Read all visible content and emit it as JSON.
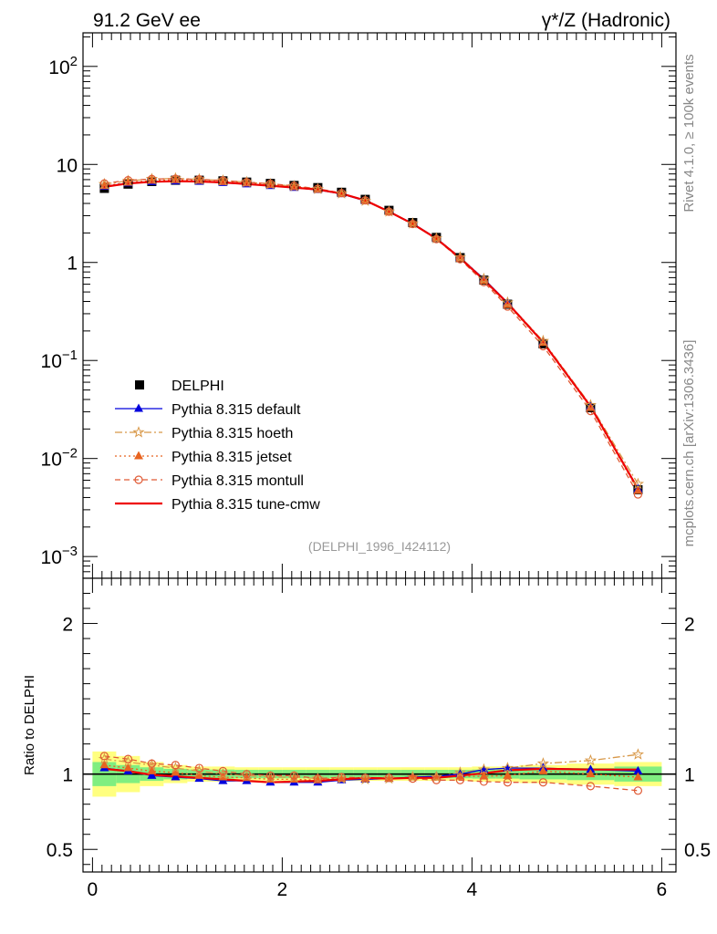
{
  "header": {
    "title_left": "91.2 GeV ee",
    "title_right": "γ*/Z (Hadronic)"
  },
  "side_labels": {
    "rivet": "Rivet 4.1.0, ≥ 100k events",
    "mcplots": "mcplots.cern.ch [arXiv:1306.3436]"
  },
  "watermark": "(DELPHI_1996_I424112)",
  "chart_data": [
    {
      "panel": "main",
      "type": "scatter",
      "yscale": "log",
      "xlim": [
        -0.1,
        6.15
      ],
      "ylim": [
        0.0006,
        220
      ],
      "ytick_labels": [
        {
          "value": 0.001,
          "base": "10",
          "exp": "−3"
        },
        {
          "value": 0.01,
          "base": "10",
          "exp": "−2"
        },
        {
          "value": 0.1,
          "base": "10",
          "exp": "−1"
        },
        {
          "value": 1,
          "base": "1",
          "exp": ""
        },
        {
          "value": 10,
          "base": "10",
          "exp": ""
        },
        {
          "value": 100,
          "base": "10",
          "exp": "2"
        }
      ],
      "x": [
        0.125,
        0.375,
        0.625,
        0.875,
        1.125,
        1.375,
        1.625,
        1.875,
        2.125,
        2.375,
        2.625,
        2.875,
        3.125,
        3.375,
        3.625,
        3.875,
        4.125,
        4.375,
        4.75,
        5.25,
        5.75
      ],
      "series": [
        {
          "name": "DELPHI",
          "key": "data",
          "color": "#000000",
          "marker": "square",
          "values": [
            5.7,
            6.3,
            6.7,
            6.9,
            6.9,
            6.8,
            6.6,
            6.4,
            6.1,
            5.8,
            5.2,
            4.4,
            3.4,
            2.55,
            1.8,
            1.12,
            0.66,
            0.375,
            0.148,
            0.033,
            0.0048
          ]
        },
        {
          "name": "Pythia 8.315 default",
          "key": "default",
          "color": "#0000dd",
          "marker": "triangle",
          "dash": "",
          "values": [
            5.95,
            6.45,
            6.65,
            6.75,
            6.7,
            6.5,
            6.3,
            6.05,
            5.8,
            5.5,
            5.0,
            4.25,
            3.3,
            2.5,
            1.77,
            1.12,
            0.68,
            0.39,
            0.154,
            0.034,
            0.0049
          ]
        },
        {
          "name": "Pythia 8.315 hoeth",
          "key": "hoeth",
          "color": "#d89848",
          "marker": "star",
          "dash": "8 3 2 3",
          "values": [
            6.3,
            6.8,
            7.1,
            7.2,
            7.05,
            6.85,
            6.6,
            6.3,
            6.0,
            5.6,
            5.05,
            4.25,
            3.3,
            2.5,
            1.76,
            1.13,
            0.68,
            0.39,
            0.158,
            0.035,
            0.0055
          ]
        },
        {
          "name": "Pythia 8.315 jetset",
          "key": "jetset",
          "color": "#e86420",
          "marker": "triangle",
          "dash": "2 3",
          "values": [
            6.05,
            6.55,
            6.85,
            6.95,
            6.85,
            6.65,
            6.45,
            6.2,
            5.9,
            5.55,
            5.05,
            4.28,
            3.3,
            2.5,
            1.77,
            1.1,
            0.65,
            0.37,
            0.152,
            0.033,
            0.0047
          ]
        },
        {
          "name": "Pythia 8.315 montull",
          "key": "montull",
          "color": "#e05a35",
          "marker": "circle",
          "dash": "6 4",
          "values": [
            6.4,
            6.9,
            7.1,
            7.15,
            7.05,
            6.85,
            6.6,
            6.35,
            6.05,
            5.65,
            5.1,
            4.3,
            3.3,
            2.47,
            1.73,
            1.08,
            0.63,
            0.355,
            0.14,
            0.0305,
            0.0043
          ]
        },
        {
          "name": "Pythia 8.315 tune-cmw",
          "key": "cmw",
          "color": "#ee0000",
          "marker": "none",
          "dash": "",
          "values": [
            5.9,
            6.4,
            6.65,
            6.75,
            6.7,
            6.55,
            6.3,
            6.05,
            5.8,
            5.55,
            5.05,
            4.3,
            3.3,
            2.48,
            1.75,
            1.11,
            0.665,
            0.385,
            0.153,
            0.034,
            0.0049
          ]
        }
      ]
    },
    {
      "panel": "ratio",
      "type": "scatter",
      "ylabel": "Ratio to DELPHI",
      "xlim": [
        -0.1,
        6.15
      ],
      "ylim": [
        0.35,
        2.3
      ],
      "xtick_labels": [
        {
          "value": 0,
          "label": "0"
        },
        {
          "value": 2,
          "label": "2"
        },
        {
          "value": 4,
          "label": "4"
        },
        {
          "value": 6,
          "label": "6"
        }
      ],
      "ytick_labels": [
        {
          "value": 0.5,
          "label": "0.5"
        },
        {
          "value": 1,
          "label": "1"
        },
        {
          "value": 2,
          "label": "2"
        }
      ],
      "bins": [
        [
          0,
          0.25
        ],
        [
          0.25,
          0.5
        ],
        [
          0.5,
          0.75
        ],
        [
          0.75,
          1.0
        ],
        [
          1.0,
          1.25
        ],
        [
          1.25,
          1.5
        ],
        [
          1.5,
          1.75
        ],
        [
          1.75,
          2.0
        ],
        [
          2.0,
          2.25
        ],
        [
          2.25,
          2.5
        ],
        [
          2.5,
          2.75
        ],
        [
          2.75,
          3.0
        ],
        [
          3.0,
          3.25
        ],
        [
          3.25,
          3.5
        ],
        [
          3.5,
          3.75
        ],
        [
          3.75,
          4.0
        ],
        [
          4.0,
          4.25
        ],
        [
          4.25,
          4.5
        ],
        [
          4.5,
          5.0
        ],
        [
          5.0,
          5.5
        ],
        [
          5.5,
          6.0
        ]
      ],
      "band_outer": [
        0.15,
        0.12,
        0.08,
        0.06,
        0.05,
        0.05,
        0.045,
        0.045,
        0.045,
        0.045,
        0.045,
        0.045,
        0.045,
        0.045,
        0.045,
        0.045,
        0.05,
        0.05,
        0.06,
        0.07,
        0.08
      ],
      "band_inner": [
        0.08,
        0.06,
        0.045,
        0.035,
        0.03,
        0.03,
        0.028,
        0.028,
        0.028,
        0.028,
        0.028,
        0.028,
        0.028,
        0.028,
        0.028,
        0.028,
        0.03,
        0.03,
        0.035,
        0.04,
        0.05
      ],
      "series": [
        {
          "key": "default",
          "values": [
            1.04,
            1.02,
            0.99,
            0.98,
            0.97,
            0.955,
            0.955,
            0.945,
            0.945,
            0.945,
            0.96,
            0.965,
            0.97,
            0.98,
            0.985,
            1.0,
            1.03,
            1.04,
            1.04,
            1.03,
            1.02
          ]
        },
        {
          "key": "hoeth",
          "values": [
            1.1,
            1.08,
            1.06,
            1.04,
            1.02,
            1.0,
            0.99,
            0.98,
            0.98,
            0.97,
            0.97,
            0.965,
            0.97,
            0.98,
            0.98,
            1.01,
            1.03,
            1.04,
            1.07,
            1.09,
            1.13
          ]
        },
        {
          "key": "jetset",
          "values": [
            1.06,
            1.04,
            1.02,
            1.01,
            0.99,
            0.98,
            0.975,
            0.965,
            0.965,
            0.96,
            0.97,
            0.97,
            0.97,
            0.98,
            0.985,
            0.985,
            0.985,
            0.99,
            1.02,
            1.0,
            0.98
          ]
        },
        {
          "key": "montull",
          "values": [
            1.12,
            1.1,
            1.07,
            1.06,
            1.04,
            1.02,
            1.0,
            0.99,
            0.99,
            0.97,
            0.98,
            0.975,
            0.975,
            0.97,
            0.96,
            0.96,
            0.95,
            0.945,
            0.945,
            0.92,
            0.89
          ]
        },
        {
          "key": "cmw",
          "values": [
            1.035,
            1.02,
            0.995,
            0.985,
            0.975,
            0.965,
            0.955,
            0.945,
            0.95,
            0.955,
            0.965,
            0.975,
            0.97,
            0.975,
            0.975,
            0.99,
            1.005,
            1.025,
            1.035,
            1.03,
            1.03
          ]
        }
      ]
    }
  ]
}
